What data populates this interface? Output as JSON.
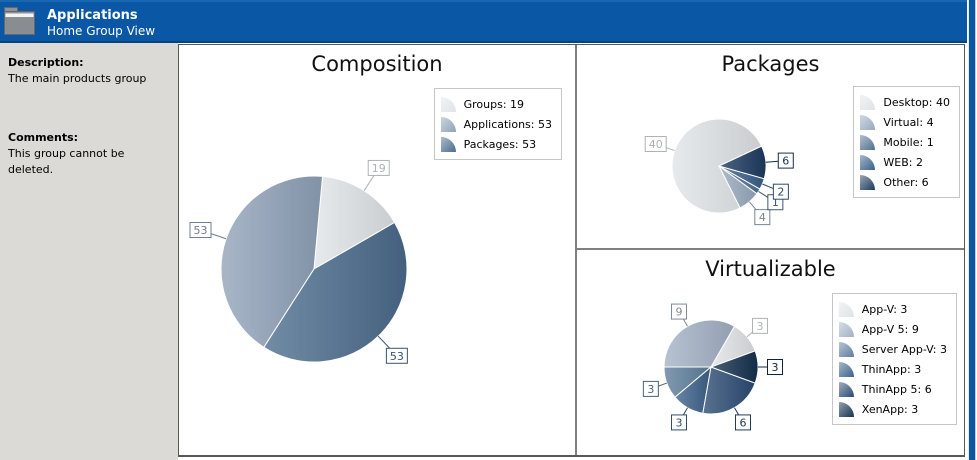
{
  "header": {
    "title": "Applications",
    "subtitle": "Home Group View",
    "accent_color": "#0a57a5",
    "icon": "folder-icon"
  },
  "sidebar": {
    "description_label": "Description:",
    "description_text": "The main products group",
    "comments_label": "Comments:",
    "comments_text": "This group cannot be deleted."
  },
  "chart_data": [
    {
      "id": "composition",
      "type": "pie",
      "title": "Composition",
      "categories": [
        "Groups",
        "Applications",
        "Packages"
      ],
      "values": [
        19,
        53,
        53
      ],
      "colors": [
        "#e0e4e6",
        "#8fa2b8",
        "#4a6b8c"
      ],
      "rotation": 30,
      "legend_position": "top-right",
      "legend_format": "{category}: {value}"
    },
    {
      "id": "packages",
      "type": "pie",
      "title": "Packages",
      "categories": [
        "Desktop",
        "Virtual",
        "Mobile",
        "WEB",
        "Other"
      ],
      "values": [
        40,
        4,
        1,
        2,
        6
      ],
      "colors": [
        "#e0e4e6",
        "#97a9bd",
        "#4f7092",
        "#38608a",
        "#1c3a60"
      ],
      "rotation": 25,
      "legend_position": "top-right",
      "legend_format": "{category}: {value}"
    },
    {
      "id": "virtualizable",
      "type": "pie",
      "title": "Virtualizable",
      "categories": [
        "App-V",
        "App-V 5",
        "Server App-V",
        "ThinApp",
        "ThinApp 5",
        "XenApp"
      ],
      "values": [
        3,
        9,
        3,
        3,
        6,
        3
      ],
      "colors": [
        "#e0e4e6",
        "#a3b1c5",
        "#5d7e9b",
        "#3c6189",
        "#2a4a72",
        "#15304e"
      ],
      "rotation": 20,
      "legend_position": "top-right",
      "legend_format": "{category}: {value}"
    }
  ]
}
